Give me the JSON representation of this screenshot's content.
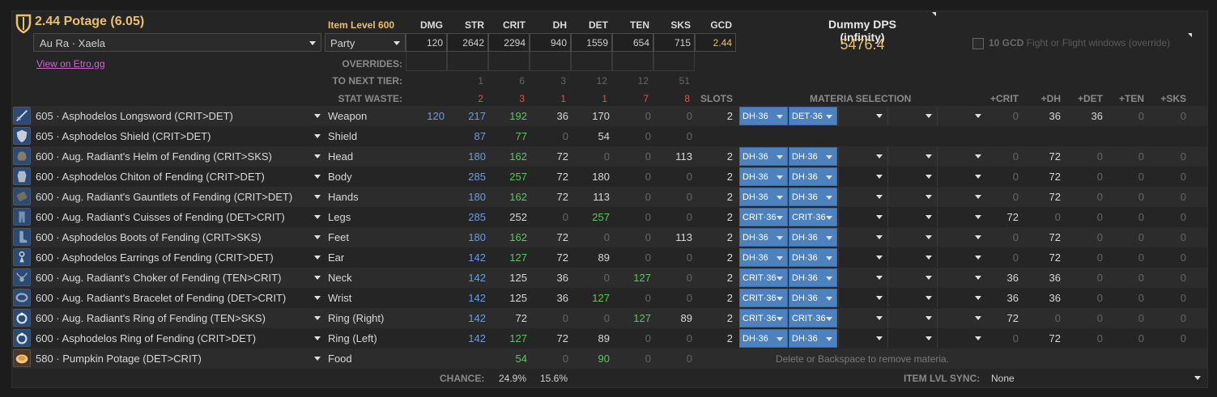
{
  "header": {
    "title": "2.44 Potage (6.05)",
    "race": "Au Ra · Xaela",
    "link": "View on Etro.gg",
    "item_level": "Item Level 600",
    "party": "Party",
    "stat_headers": [
      "DMG",
      "STR",
      "CRIT",
      "DH",
      "DET",
      "TEN",
      "SKS",
      "GCD"
    ],
    "stat_values": [
      "120",
      "2642",
      "2294",
      "940",
      "1559",
      "654",
      "715",
      "2.44"
    ],
    "overrides_label": "OVERRIDES:",
    "next_tier_label": "TO NEXT TIER:",
    "next_tier": [
      "",
      "1",
      "6",
      "3",
      "12",
      "12",
      "51"
    ],
    "waste_label": "STAT WASTE:",
    "waste": [
      "",
      "2",
      "3",
      "1",
      "1",
      "7",
      "8"
    ],
    "slots_label": "SLOTS",
    "materia_label": "MATERIA SELECTION",
    "plus_headers": [
      "+CRIT",
      "+DH",
      "+DET",
      "+TEN",
      "+SKS"
    ]
  },
  "dps": {
    "title": "Dummy DPS (infinity)",
    "value": "5476.4",
    "gcd_option_bold": "10 GCD",
    "gcd_option_text": " Fight or Flight windows (override)"
  },
  "gear": [
    {
      "name": "605 · Asphodelos Longsword (CRIT>DET)",
      "slot": "Weapon",
      "dmg": "120",
      "str": "217",
      "crit": "192",
      "dh": "36",
      "det": "170",
      "ten": "0",
      "sks": "0",
      "slots": "2",
      "materia": [
        "DH·36",
        "DET·36",
        "",
        "",
        ""
      ],
      "plus": [
        "0",
        "36",
        "36",
        "0",
        "0"
      ],
      "icon": "sword-icon",
      "alt": true
    },
    {
      "name": "605 · Asphodelos Shield (CRIT>DET)",
      "slot": "Shield",
      "dmg": "",
      "str": "87",
      "crit": "77",
      "dh": "0",
      "det": "54",
      "ten": "0",
      "sks": "0",
      "slots": "",
      "materia": [],
      "plus": [],
      "icon": "shield-icon",
      "alt": false
    },
    {
      "name": "600 · Aug. Radiant's Helm of Fending (CRIT>SKS)",
      "slot": "Head",
      "dmg": "",
      "str": "180",
      "crit": "162",
      "dh": "72",
      "det": "0",
      "ten": "0",
      "sks": "113",
      "slots": "2",
      "materia": [
        "DH·36",
        "DH·36"
      ],
      "plus": [
        "0",
        "72",
        "0",
        "0",
        "0"
      ],
      "icon": "helm-icon",
      "alt": true
    },
    {
      "name": "600 · Asphodelos Chiton of Fending (CRIT>DET)",
      "slot": "Body",
      "dmg": "",
      "str": "285",
      "crit": "257",
      "dh": "72",
      "det": "180",
      "ten": "0",
      "sks": "0",
      "slots": "2",
      "materia": [
        "DH·36",
        "DH·36"
      ],
      "plus": [
        "0",
        "72",
        "0",
        "0",
        "0"
      ],
      "icon": "body-icon",
      "alt": false
    },
    {
      "name": "600 · Aug. Radiant's Gauntlets of Fending (CRIT>DET)",
      "slot": "Hands",
      "dmg": "",
      "str": "180",
      "crit": "162",
      "dh": "72",
      "det": "113",
      "ten": "0",
      "sks": "0",
      "slots": "2",
      "materia": [
        "DH·36",
        "DH·36"
      ],
      "plus": [
        "0",
        "72",
        "0",
        "0",
        "0"
      ],
      "icon": "gauntlets-icon",
      "alt": true
    },
    {
      "name": "600 · Aug. Radiant's Cuisses of Fending (DET>CRIT)",
      "slot": "Legs",
      "dmg": "",
      "str": "285",
      "crit": "252",
      "dh": "0",
      "det": "257",
      "ten": "0",
      "sks": "0",
      "slots": "2",
      "materia": [
        "CRIT·36",
        "CRIT·36"
      ],
      "plus": [
        "72",
        "0",
        "0",
        "0",
        "0"
      ],
      "icon": "legs-icon",
      "alt": false
    },
    {
      "name": "600 · Asphodelos Boots of Fending (CRIT>SKS)",
      "slot": "Feet",
      "dmg": "",
      "str": "180",
      "crit": "162",
      "dh": "72",
      "det": "0",
      "ten": "0",
      "sks": "113",
      "slots": "2",
      "materia": [
        "DH·36",
        "DH·36"
      ],
      "plus": [
        "0",
        "72",
        "0",
        "0",
        "0"
      ],
      "icon": "boots-icon",
      "alt": true
    },
    {
      "name": "600 · Asphodelos Earrings of Fending (CRIT>DET)",
      "slot": "Ear",
      "dmg": "",
      "str": "142",
      "crit": "127",
      "dh": "72",
      "det": "89",
      "ten": "0",
      "sks": "0",
      "slots": "2",
      "materia": [
        "DH·36",
        "DH·36"
      ],
      "plus": [
        "0",
        "72",
        "0",
        "0",
        "0"
      ],
      "icon": "earring-icon",
      "alt": false
    },
    {
      "name": "600 · Aug. Radiant's Choker of Fending (TEN>CRIT)",
      "slot": "Neck",
      "dmg": "",
      "str": "142",
      "crit": "125",
      "dh": "36",
      "det": "0",
      "ten": "127",
      "sks": "0",
      "slots": "2",
      "materia": [
        "CRIT·36",
        "DH·36"
      ],
      "plus": [
        "36",
        "36",
        "0",
        "0",
        "0"
      ],
      "icon": "necklace-icon",
      "alt": true
    },
    {
      "name": "600 · Aug. Radiant's Bracelet of Fending (DET>CRIT)",
      "slot": "Wrist",
      "dmg": "",
      "str": "142",
      "crit": "125",
      "dh": "36",
      "det": "127",
      "ten": "0",
      "sks": "0",
      "slots": "2",
      "materia": [
        "CRIT·36",
        "DH·36"
      ],
      "plus": [
        "36",
        "36",
        "0",
        "0",
        "0"
      ],
      "icon": "bracelet-icon",
      "alt": false
    },
    {
      "name": "600 · Aug. Radiant's Ring of Fending (TEN>SKS)",
      "slot": "Ring (Right)",
      "dmg": "",
      "str": "142",
      "crit": "72",
      "dh": "0",
      "det": "0",
      "ten": "127",
      "sks": "89",
      "slots": "2",
      "materia": [
        "CRIT·36",
        "CRIT·36"
      ],
      "plus": [
        "72",
        "0",
        "0",
        "0",
        "0"
      ],
      "icon": "ring-icon",
      "alt": true
    },
    {
      "name": "600 · Asphodelos Ring of Fending (CRIT>DET)",
      "slot": "Ring (Left)",
      "dmg": "",
      "str": "142",
      "crit": "127",
      "dh": "72",
      "det": "89",
      "ten": "0",
      "sks": "0",
      "slots": "2",
      "materia": [
        "DH·36",
        "DH·36"
      ],
      "plus": [
        "0",
        "72",
        "0",
        "0",
        "0"
      ],
      "icon": "ring-icon",
      "alt": false
    },
    {
      "name": "580 · Pumpkin Potage (DET>CRIT)",
      "slot": "Food",
      "dmg": "",
      "str": "",
      "crit": "54",
      "dh": "0",
      "det": "90",
      "ten": "0",
      "sks": "0",
      "slots": "",
      "materia": [],
      "plus": [],
      "icon": "food-icon",
      "alt": true
    }
  ],
  "hint": "Delete or Backspace to remove materia.",
  "footer": {
    "chance_label": "CHANCE:",
    "crit_chance": "24.9%",
    "dh_chance": "15.6%",
    "sync_label": "ITEM LVL SYNC:",
    "sync_value": "None"
  },
  "colors": {
    "gold": "#e8c16a",
    "materia": "#4e82bf",
    "link": "#c86ad0",
    "blue": "#6d9be0",
    "green": "#5cc85c",
    "red": "#e05050"
  }
}
